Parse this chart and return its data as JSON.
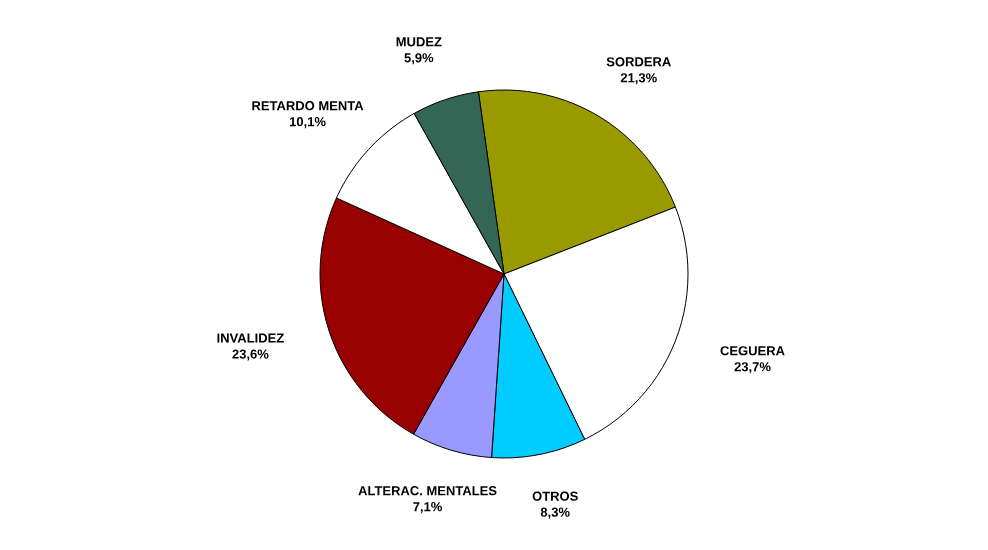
{
  "chart_data": {
    "type": "pie",
    "categories": [
      "SORDERA",
      "CEGUERA",
      "OTROS",
      "ALTERAC. MENTALES",
      "INVALIDEZ",
      "RETARDO MENTA",
      "MUDEZ"
    ],
    "values": [
      21.3,
      23.7,
      8.3,
      7.1,
      23.6,
      10.1,
      5.9
    ],
    "value_labels": [
      "21,3%",
      "23,7%",
      "8,3%",
      "7,1%",
      "23,6%",
      "10,1%",
      "5,9%"
    ],
    "colors": [
      "#999900",
      "#ffffff",
      "#00ccff",
      "#9999ff",
      "#990000",
      "#ffffff",
      "#336655"
    ]
  }
}
